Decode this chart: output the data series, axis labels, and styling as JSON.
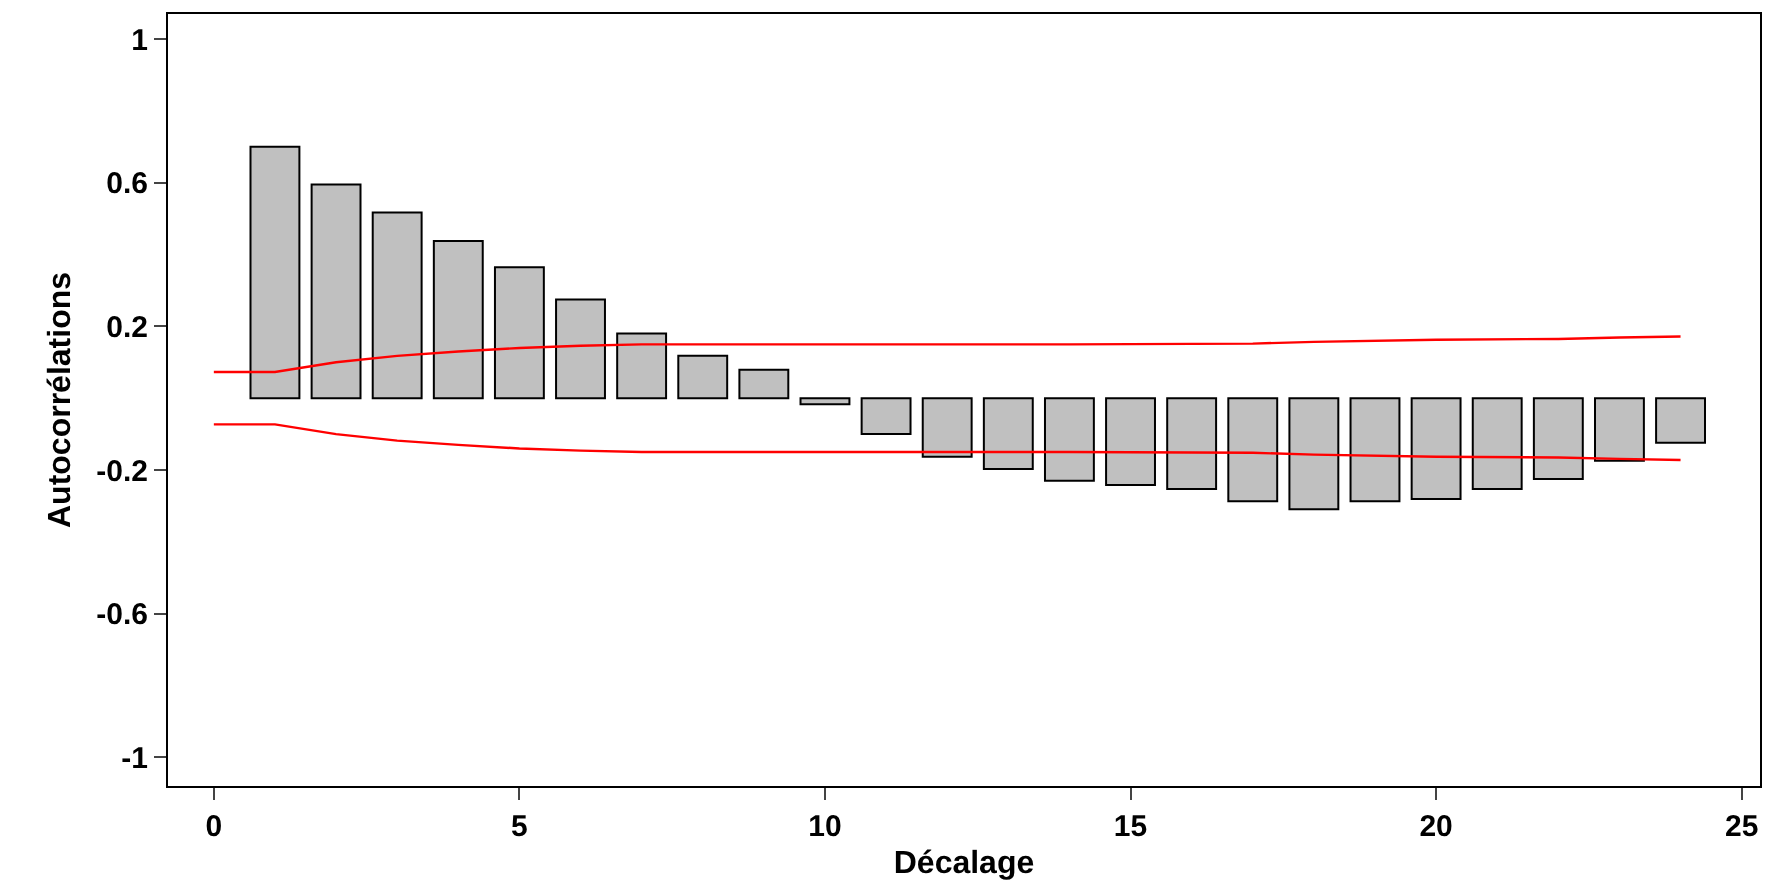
{
  "chart_data": {
    "type": "bar",
    "xlabel": "Décalage",
    "ylabel": "Autocorrélations",
    "x": [
      1,
      2,
      3,
      4,
      5,
      6,
      7,
      8,
      9,
      10,
      11,
      12,
      13,
      14,
      15,
      16,
      17,
      18,
      19,
      20,
      21,
      22,
      23,
      24
    ],
    "series": [
      {
        "color": "#c0c0c0",
        "values": [
          0.7,
          0.595,
          0.517,
          0.438,
          0.365,
          0.275,
          0.18,
          0.118,
          0.079,
          -0.017,
          -0.1,
          -0.163,
          -0.197,
          -0.23,
          -0.242,
          -0.253,
          -0.287,
          -0.309,
          -0.287,
          -0.281,
          -0.253,
          -0.225,
          -0.174,
          -0.124
        ]
      },
      {
        "type": "line",
        "color": "#ff0000",
        "x": [
          0,
          1,
          2,
          3,
          4,
          5,
          6,
          7,
          10,
          14,
          17,
          18,
          20,
          22,
          23,
          24
        ],
        "values": [
          0.073,
          0.073,
          0.1,
          0.118,
          0.13,
          0.14,
          0.146,
          0.15,
          0.15,
          0.15,
          0.152,
          0.157,
          0.163,
          0.165,
          0.169,
          0.172
        ]
      },
      {
        "type": "line",
        "color": "#ff0000",
        "x": [
          0,
          1,
          2,
          3,
          4,
          5,
          6,
          7,
          10,
          14,
          17,
          18,
          20,
          22,
          23,
          24
        ],
        "values": [
          -0.073,
          -0.073,
          -0.1,
          -0.118,
          -0.13,
          -0.14,
          -0.146,
          -0.15,
          -0.15,
          -0.15,
          -0.152,
          -0.157,
          -0.163,
          -0.165,
          -0.169,
          -0.172
        ]
      }
    ],
    "xlim": [
      -0.75,
      25.3
    ],
    "xticks": [
      0,
      5,
      10,
      15,
      20,
      25
    ],
    "ylim": [
      -1.08,
      1.07
    ],
    "yticks": [
      -1,
      -0.6,
      -0.2,
      0.2,
      0.6,
      1
    ],
    "grid": false,
    "legend": false
  }
}
